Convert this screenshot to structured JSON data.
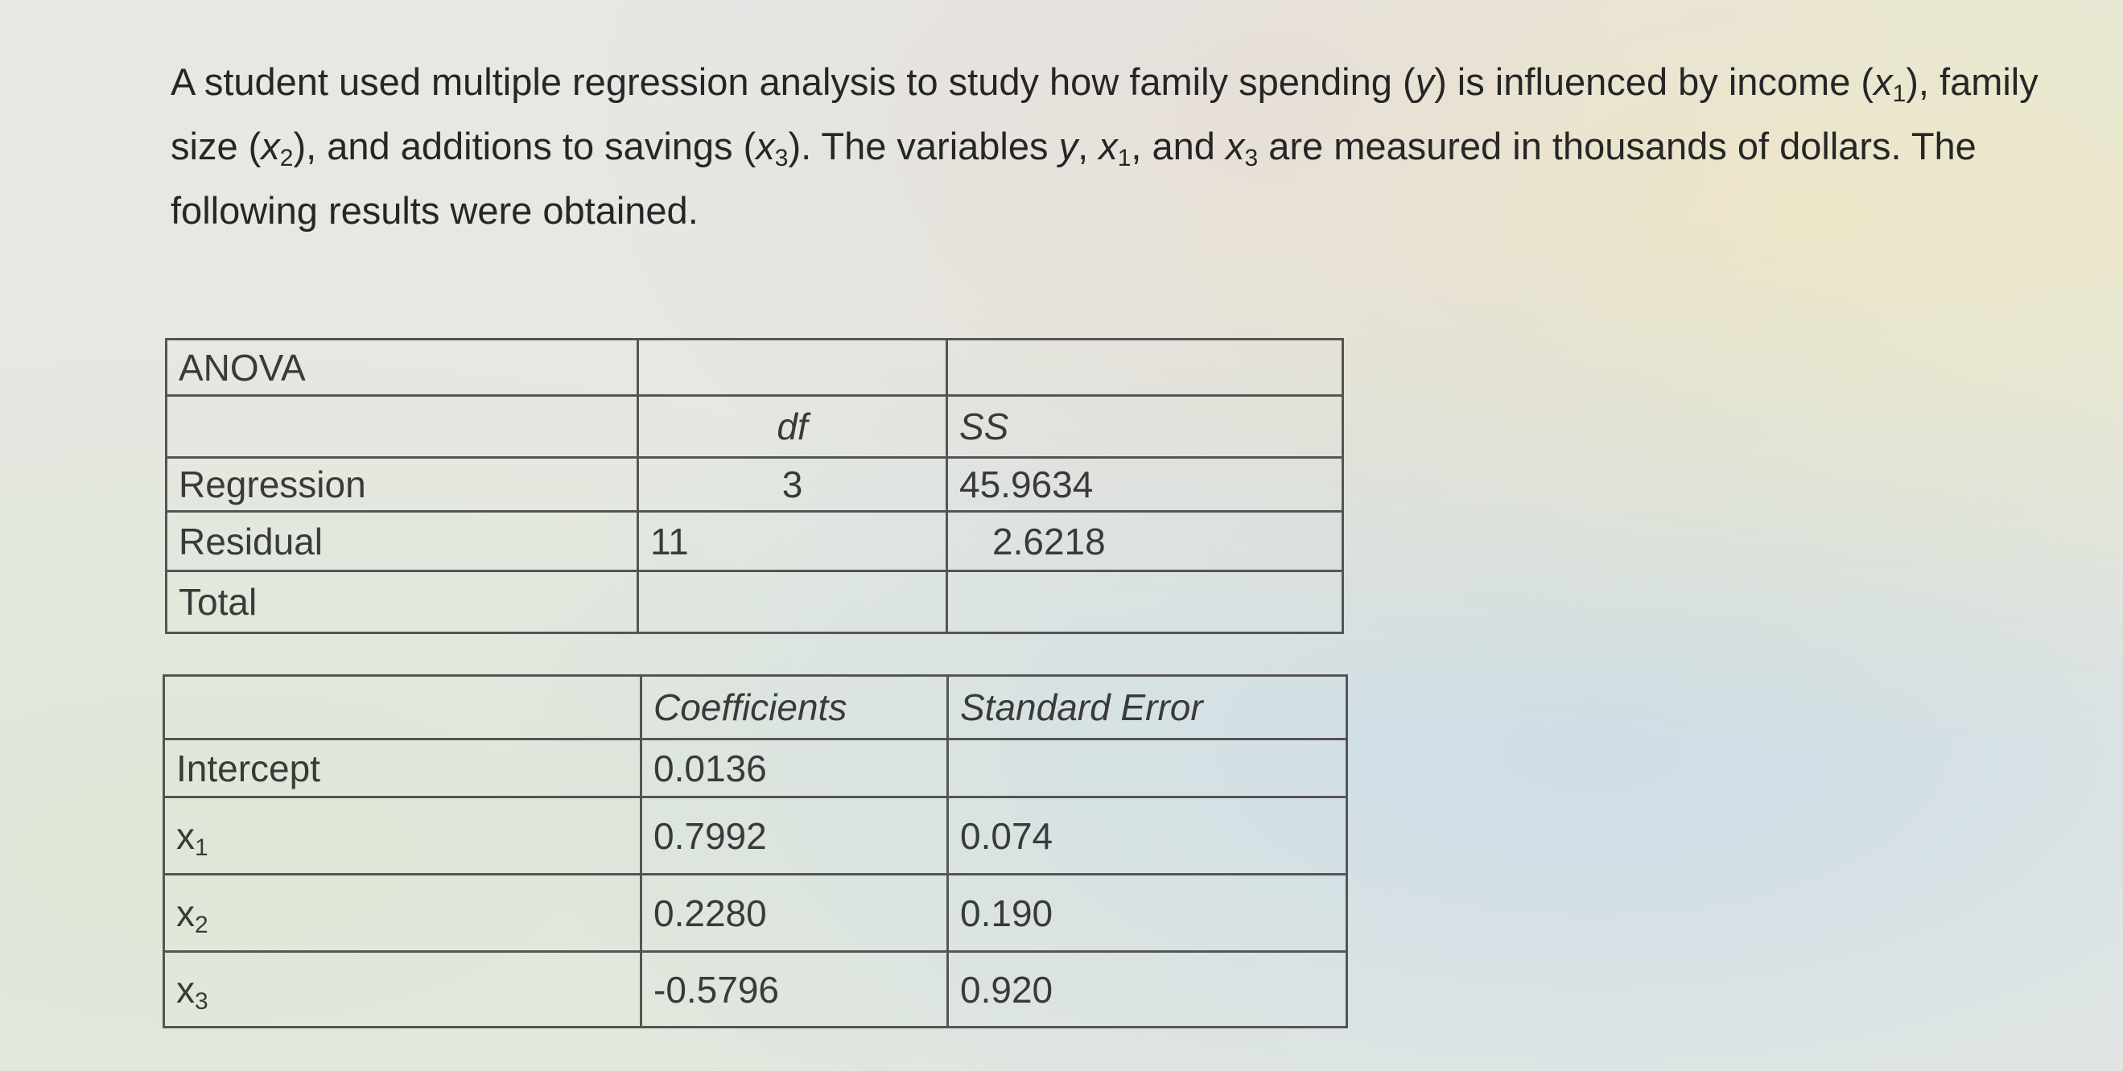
{
  "paragraph": [
    "A student used multiple regression analysis to study how family spending (",
    "y",
    ") is influenced by income (",
    "x",
    "1",
    "), family size (",
    "x",
    "2",
    "), and additions to savings (",
    "x",
    "3",
    "). The variables ",
    "y",
    ", ",
    "x",
    "1",
    ", and ",
    "x",
    "3",
    " are measured in thousands of dollars. The following results were obtained."
  ],
  "anova": {
    "title": "ANOVA",
    "headers": [
      "df",
      "SS"
    ],
    "rows": [
      {
        "label": "Regression",
        "df": "3",
        "ss": "45.9634"
      },
      {
        "label": "Residual",
        "df": "11",
        "ss": "2.6218"
      },
      {
        "label": "Total"
      }
    ]
  },
  "coefficients": {
    "headers": [
      "Coefficients",
      "Standard Error"
    ],
    "rows": [
      {
        "label": "Intercept",
        "coef": "0.0136"
      },
      {
        "label": "x",
        "label_sub": "1",
        "coef": "0.7992",
        "se": "0.074"
      },
      {
        "label": "x",
        "label_sub": "2",
        "coef": "0.2280",
        "se": "0.190"
      },
      {
        "label": "x",
        "label_sub": "3",
        "coef": "-0.5796",
        "se": "0.920"
      }
    ]
  }
}
